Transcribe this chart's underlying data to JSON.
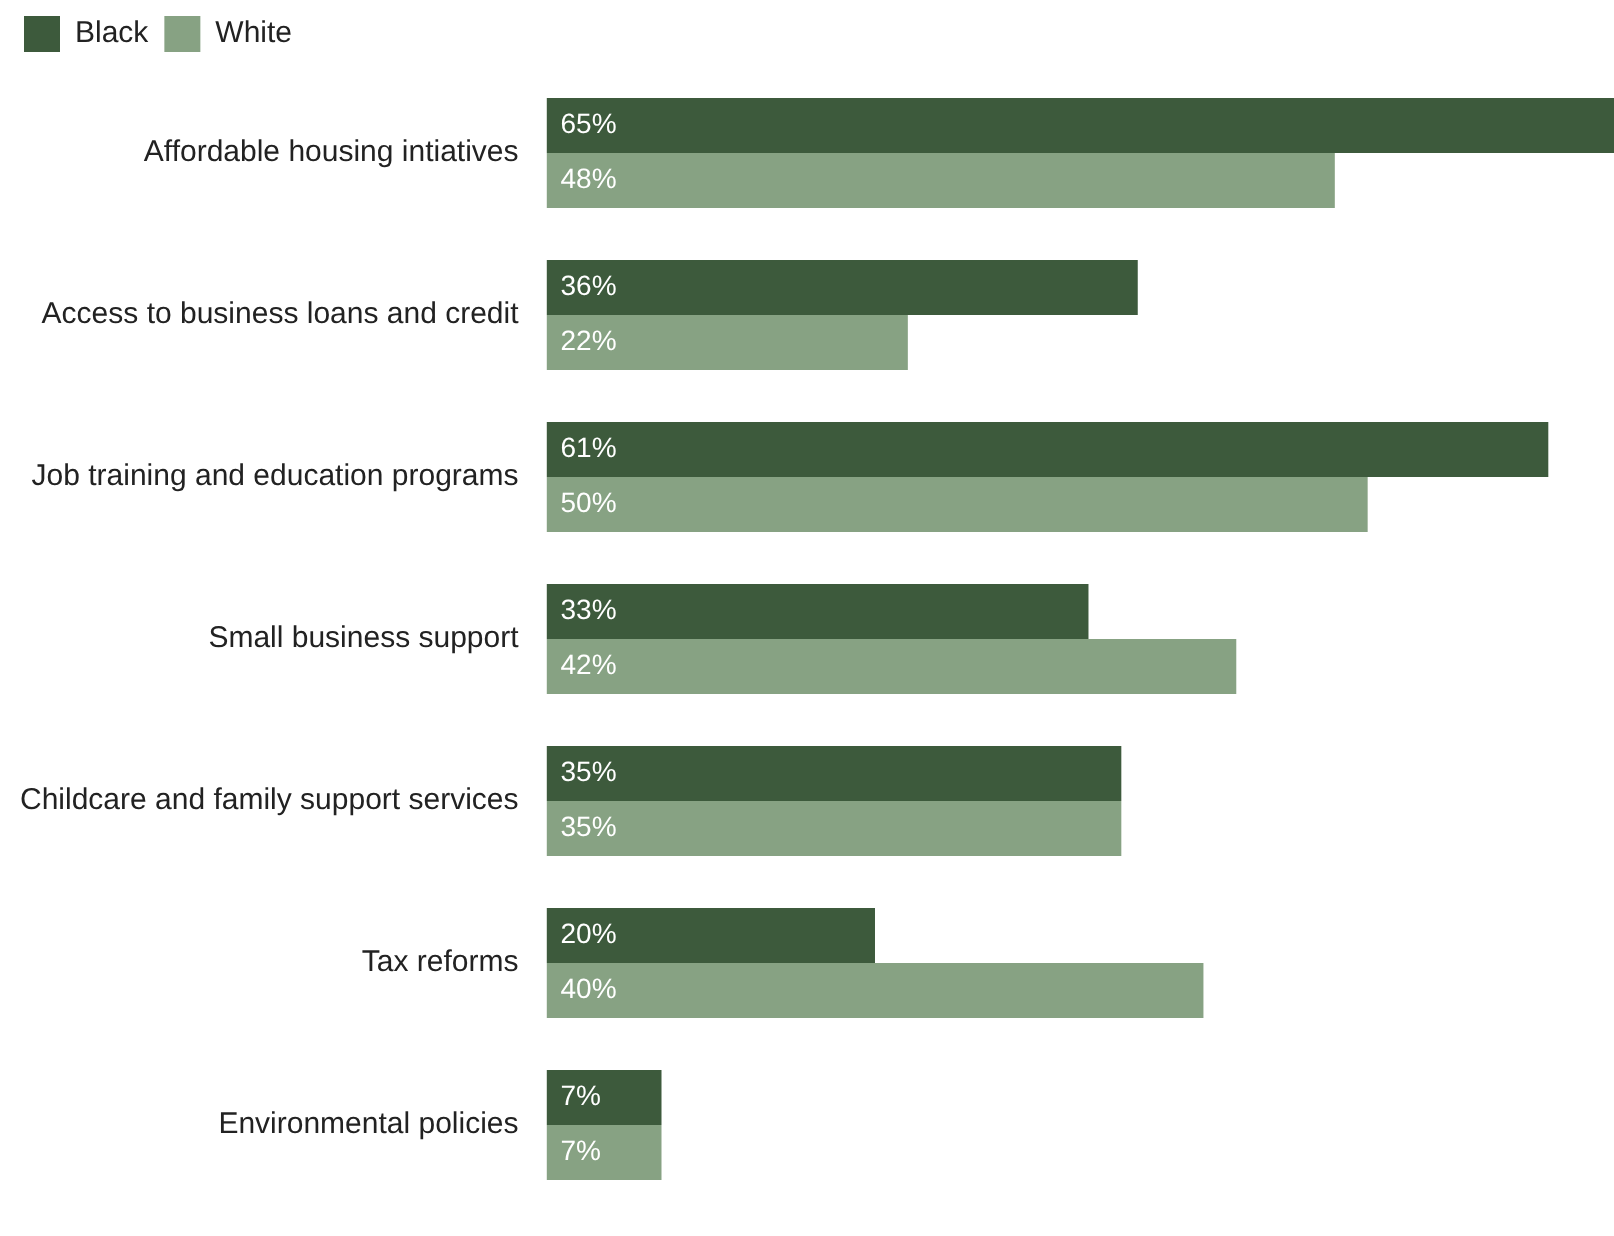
{
  "chart_data": {
    "type": "bar",
    "orientation": "horizontal",
    "legend": "top left",
    "categories": [
      "Affordable housing intiatives",
      "Access to business loans and credit",
      "Job training and education programs",
      "Small business support",
      "Childcare and family support services",
      "Tax reforms",
      "Environmental policies"
    ],
    "series": [
      {
        "name": "Black",
        "color": "#3d5a3c",
        "values": [
          65,
          36,
          61,
          33,
          35,
          20,
          7
        ],
        "value_labels": [
          "65%",
          "36%",
          "61%",
          "33%",
          "35%",
          "20%",
          "7%"
        ]
      },
      {
        "name": "White",
        "color": "#87a283",
        "values": [
          48,
          22,
          50,
          42,
          35,
          40,
          7
        ],
        "value_labels": [
          "48%",
          "22%",
          "50%",
          "42%",
          "35%",
          "40%",
          "7%"
        ]
      }
    ]
  }
}
